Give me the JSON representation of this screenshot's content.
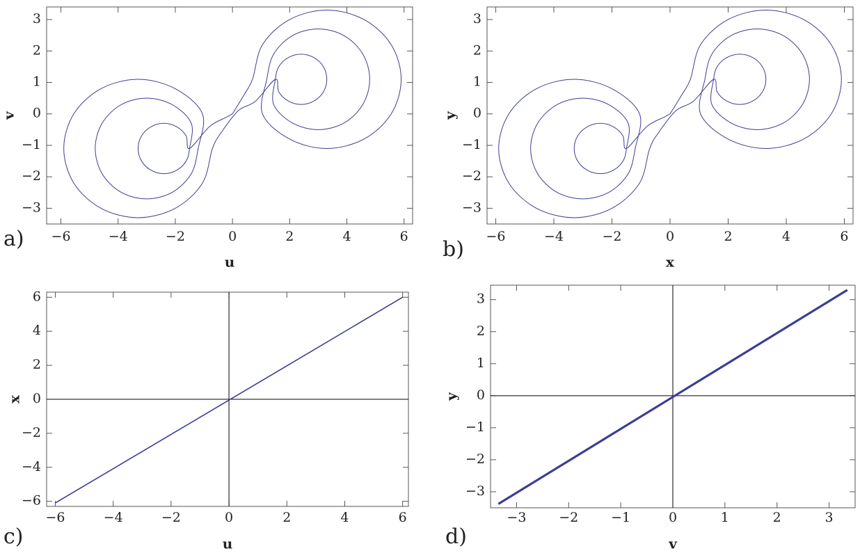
{
  "chart_data": [
    {
      "type": "line",
      "panel_label": "a)",
      "xlabel": "u",
      "ylabel": "v",
      "x": [
        0,
        0.4,
        0.7,
        1.05,
        2.0,
        3.3,
        4.6,
        5.55,
        5.9,
        5.55,
        4.6,
        3.3,
        2.0,
        1.05,
        1.2,
        1.44,
        2.1,
        3.0,
        3.9,
        4.56,
        4.8,
        4.56,
        3.9,
        3.0,
        2.1,
        1.44,
        1.5,
        1.62,
        1.95,
        2.4,
        2.85,
        3.18,
        3.3,
        3.18,
        2.85,
        2.4,
        1.95,
        1.62,
        1.5,
        0.8,
        0.2,
        -0.4,
        -0.7,
        -1.05,
        -2.0,
        -3.3,
        -4.6,
        -5.55,
        -5.9,
        -5.55,
        -4.6,
        -3.3,
        -2.0,
        -1.05,
        -1.2,
        -1.44,
        -2.1,
        -3.0,
        -3.9,
        -4.56,
        -4.8,
        -4.56,
        -3.9,
        -3.0,
        -2.1,
        -1.44,
        -1.5,
        -1.62,
        -1.95,
        -2.4,
        -2.85,
        -3.18,
        -3.3,
        -3.18,
        -2.85,
        -2.4,
        -1.95,
        -1.62,
        -1.5,
        -0.8,
        -0.2,
        0
      ],
      "series": [
        {
          "color": "#3d3d94",
          "values": [
            0,
            0.6,
            1.1,
            2.2,
            3.0,
            3.3,
            3.0,
            2.2,
            1.1,
            0.0,
            -0.8,
            -1.1,
            -0.8,
            0.0,
            1.1,
            1.9,
            2.49,
            2.7,
            2.49,
            1.9,
            1.1,
            0.3,
            -0.29,
            -0.5,
            -0.29,
            0.3,
            1.1,
            1.5,
            1.79,
            1.9,
            1.79,
            1.5,
            1.1,
            0.7,
            0.41,
            0.3,
            0.41,
            0.7,
            1.1,
            0.4,
            0.1,
            -0.6,
            -1.1,
            -2.2,
            -3.0,
            -3.3,
            -3.0,
            -2.2,
            -1.1,
            0.0,
            0.8,
            1.1,
            0.8,
            0.0,
            -1.1,
            -1.9,
            -2.49,
            -2.7,
            -2.49,
            -1.9,
            -1.1,
            -0.3,
            0.29,
            0.5,
            0.29,
            -0.3,
            -1.1,
            -1.5,
            -1.79,
            -1.9,
            -1.79,
            -1.5,
            -1.1,
            -0.7,
            -0.41,
            -0.3,
            -0.41,
            -0.7,
            -1.1,
            -0.4,
            -0.1,
            0
          ]
        }
      ],
      "xlim": [
        -6.5,
        6.3
      ],
      "ylim": [
        -3.5,
        3.4
      ],
      "xticks": [
        {
          "value": -6,
          "label": "−6"
        },
        {
          "value": -4,
          "label": "−4"
        },
        {
          "value": -2,
          "label": "−2"
        },
        0,
        2,
        4,
        6
      ],
      "yticks": [
        {
          "value": -3,
          "label": "−3"
        },
        {
          "value": -2,
          "label": "−2"
        },
        {
          "value": -1,
          "label": "−1"
        },
        0,
        1,
        2,
        3
      ],
      "axes": false
    },
    {
      "type": "line",
      "panel_label": "b)",
      "xlabel": "x",
      "ylabel": "y",
      "x": [
        0,
        0.4,
        0.7,
        1.05,
        2.0,
        3.3,
        4.6,
        5.55,
        5.9,
        5.55,
        4.6,
        3.3,
        2.0,
        1.05,
        1.2,
        1.44,
        2.1,
        3.0,
        3.9,
        4.56,
        4.8,
        4.56,
        3.9,
        3.0,
        2.1,
        1.44,
        1.5,
        1.62,
        1.95,
        2.4,
        2.85,
        3.18,
        3.3,
        3.18,
        2.85,
        2.4,
        1.95,
        1.62,
        1.5,
        0.8,
        0.2,
        -0.4,
        -0.7,
        -1.05,
        -2.0,
        -3.3,
        -4.6,
        -5.55,
        -5.9,
        -5.55,
        -4.6,
        -3.3,
        -2.0,
        -1.05,
        -1.2,
        -1.44,
        -2.1,
        -3.0,
        -3.9,
        -4.56,
        -4.8,
        -4.56,
        -3.9,
        -3.0,
        -2.1,
        -1.44,
        -1.5,
        -1.62,
        -1.95,
        -2.4,
        -2.85,
        -3.18,
        -3.3,
        -3.18,
        -2.85,
        -2.4,
        -1.95,
        -1.62,
        -1.5,
        -0.8,
        -0.2,
        0
      ],
      "series": [
        {
          "color": "#3d3d94",
          "values": [
            0,
            0.6,
            1.1,
            2.2,
            3.0,
            3.3,
            3.0,
            2.2,
            1.1,
            0.0,
            -0.8,
            -1.1,
            -0.8,
            0.0,
            1.1,
            1.9,
            2.49,
            2.7,
            2.49,
            1.9,
            1.1,
            0.3,
            -0.29,
            -0.5,
            -0.29,
            0.3,
            1.1,
            1.5,
            1.79,
            1.9,
            1.79,
            1.5,
            1.1,
            0.7,
            0.41,
            0.3,
            0.41,
            0.7,
            1.1,
            0.4,
            0.1,
            -0.6,
            -1.1,
            -2.2,
            -3.0,
            -3.3,
            -3.0,
            -2.2,
            -1.1,
            0.0,
            0.8,
            1.1,
            0.8,
            0.0,
            -1.1,
            -1.9,
            -2.49,
            -2.7,
            -2.49,
            -1.9,
            -1.1,
            -0.3,
            0.29,
            0.5,
            0.29,
            -0.3,
            -1.1,
            -1.5,
            -1.79,
            -1.9,
            -1.79,
            -1.5,
            -1.1,
            -0.7,
            -0.41,
            -0.3,
            -0.41,
            -0.7,
            -1.1,
            -0.4,
            -0.1,
            0
          ]
        }
      ],
      "xlim": [
        -6.3,
        6.3
      ],
      "ylim": [
        -3.5,
        3.4
      ],
      "xticks": [
        {
          "value": -6,
          "label": "−6"
        },
        {
          "value": -4,
          "label": "−4"
        },
        {
          "value": -2,
          "label": "−2"
        },
        0,
        2,
        4,
        6
      ],
      "yticks": [
        {
          "value": -3,
          "label": "−3"
        },
        {
          "value": -2,
          "label": "−2"
        },
        {
          "value": -1,
          "label": "−1"
        },
        0,
        1,
        2,
        3
      ],
      "axes": false
    },
    {
      "type": "line",
      "panel_label": "c)",
      "xlabel": "u",
      "ylabel": "x",
      "x": [
        -6,
        6
      ],
      "series": [
        {
          "color": "#3d3d94",
          "values": [
            -6.1,
            6
          ]
        }
      ],
      "xlim": [
        -6.3,
        6.2
      ],
      "ylim": [
        -6.3,
        6.3
      ],
      "xticks": [
        {
          "value": -6,
          "label": "−6"
        },
        {
          "value": -4,
          "label": "−4"
        },
        {
          "value": -2,
          "label": "−2"
        },
        0,
        2,
        4,
        6
      ],
      "yticks": [
        {
          "value": -6,
          "label": "−6"
        },
        {
          "value": -4,
          "label": "−4"
        },
        {
          "value": -2,
          "label": "−2"
        },
        0,
        2,
        4,
        6
      ],
      "axes": true
    },
    {
      "type": "line",
      "panel_label": "d)",
      "xlabel": "v",
      "ylabel": "y",
      "x": [
        -3.35,
        3.35
      ],
      "series": [
        {
          "color": "#3d3d94",
          "values": [
            -3.38,
            3.3
          ]
        }
      ],
      "xlim": [
        -3.5,
        3.5
      ],
      "ylim": [
        -3.5,
        3.45
      ],
      "xticks": [
        {
          "value": -3,
          "label": "−3"
        },
        {
          "value": -2,
          "label": "−2"
        },
        {
          "value": -1,
          "label": "−1"
        },
        0,
        1,
        2,
        3
      ],
      "yticks": [
        {
          "value": -3,
          "label": "−3"
        },
        {
          "value": -2,
          "label": "−2"
        },
        {
          "value": -1,
          "label": "−1"
        },
        0,
        1,
        2,
        3
      ],
      "axes": true
    }
  ]
}
